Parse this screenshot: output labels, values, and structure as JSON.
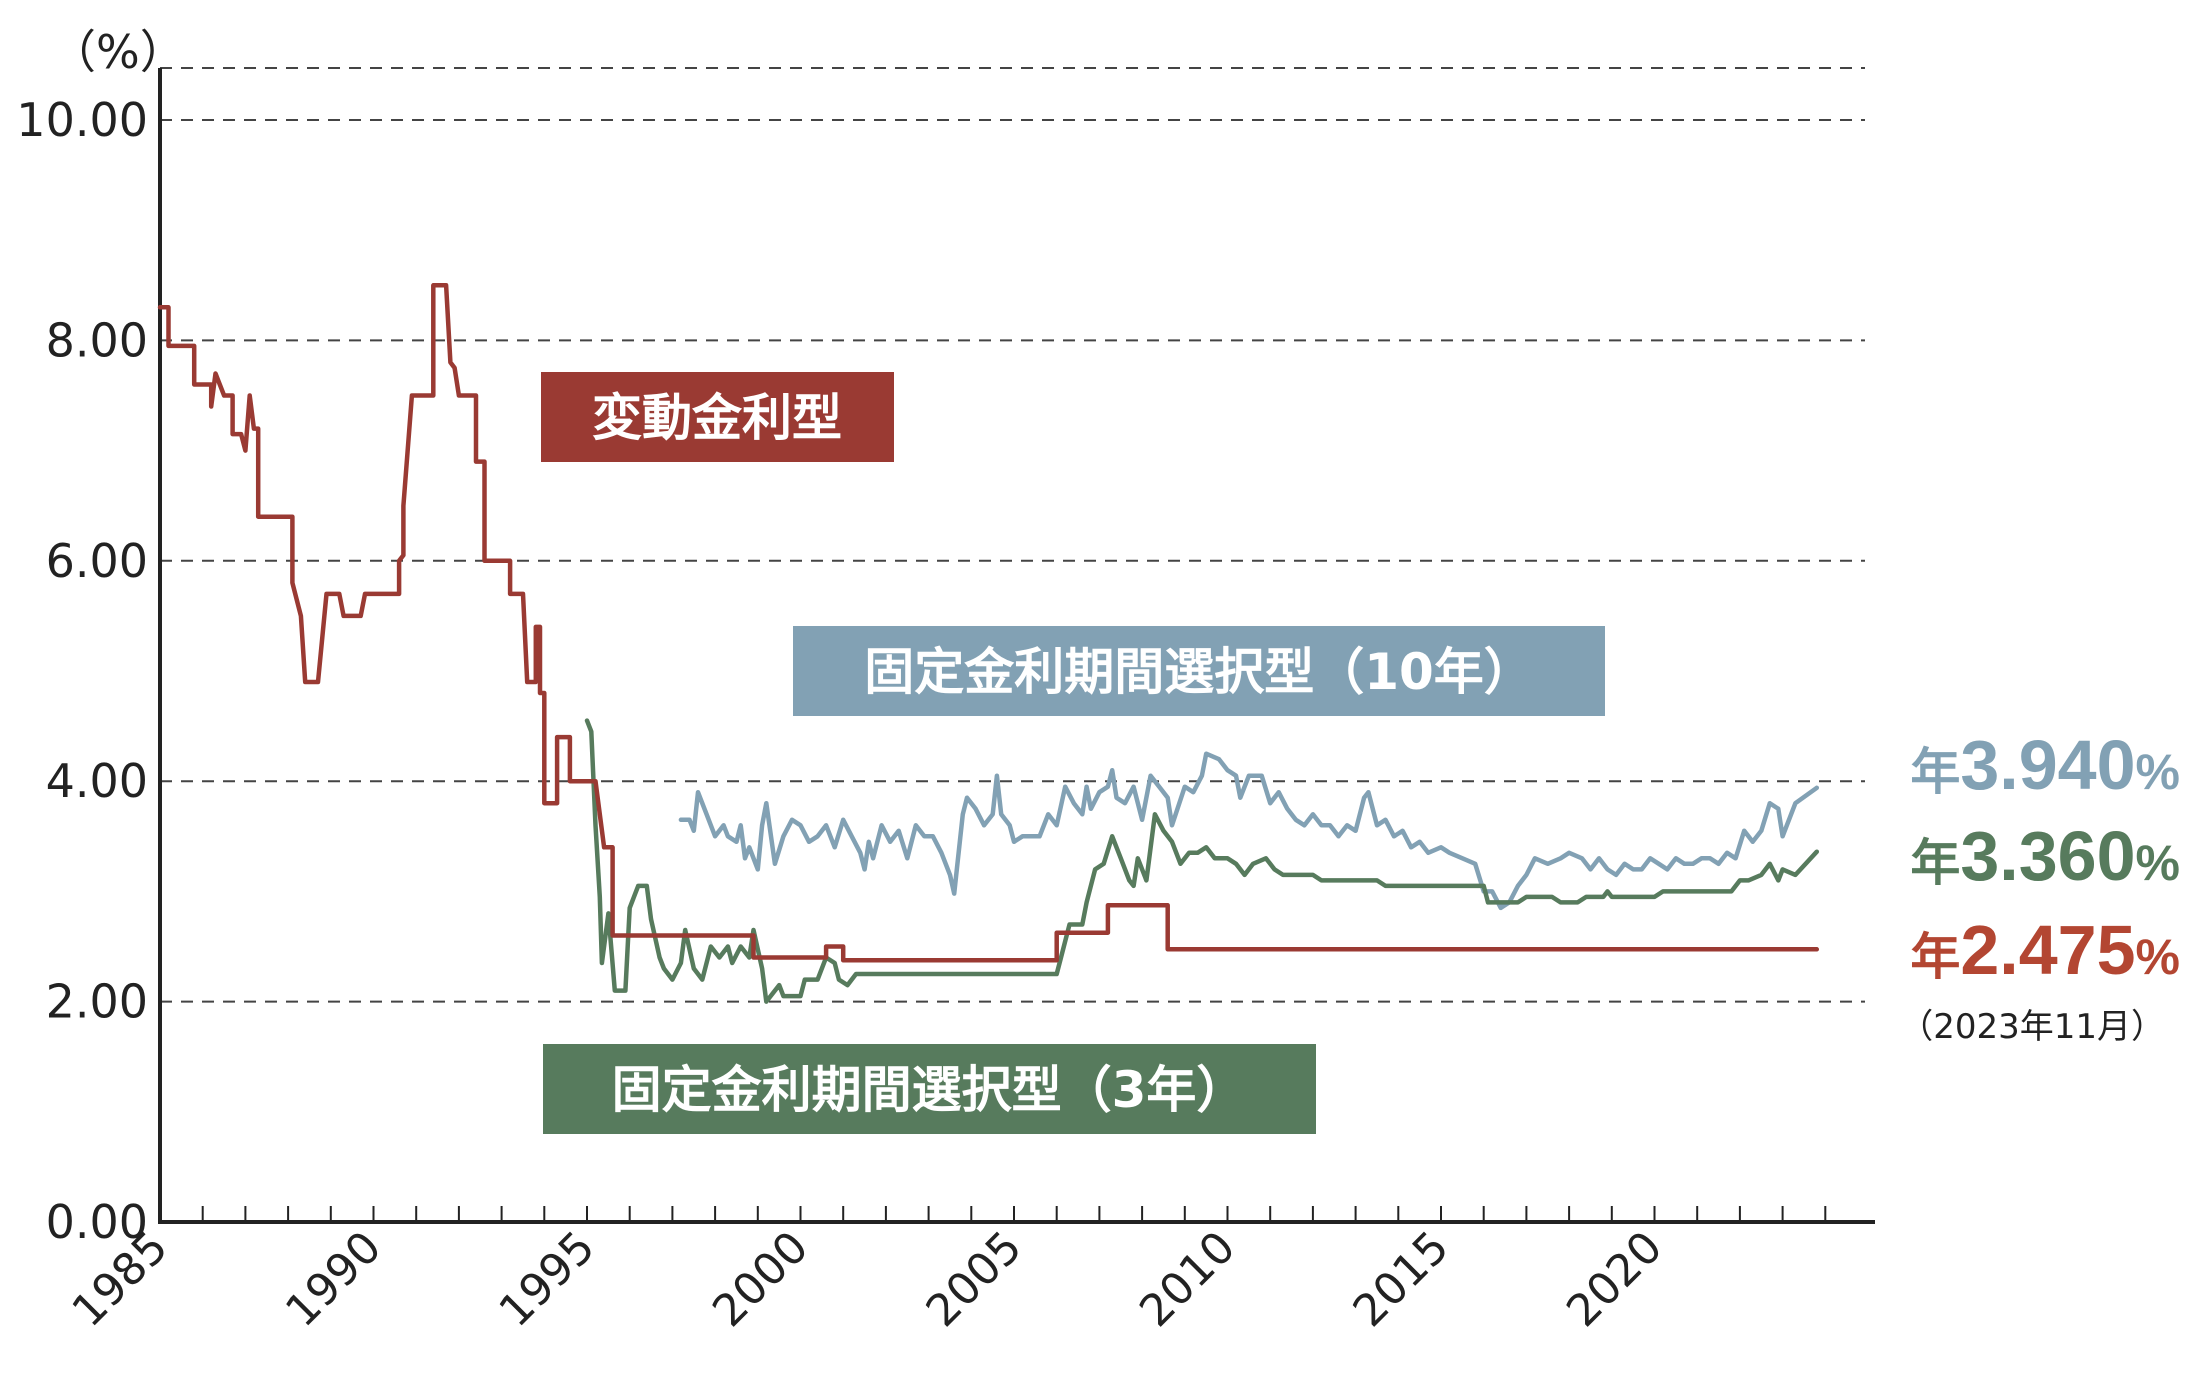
{
  "chart_data": {
    "type": "line",
    "y_unit_label": "（%）",
    "ylim": [
      0,
      10
    ],
    "y_ticks": [
      "0.00",
      "2.00",
      "4.00",
      "6.00",
      "8.00",
      "10.00"
    ],
    "y_tick_values": [
      0,
      2,
      4,
      6,
      8,
      10
    ],
    "xlim": [
      1985,
      2024
    ],
    "x_ticks": [
      "1985",
      "1990",
      "1995",
      "2000",
      "2005",
      "2010",
      "2015",
      "2020"
    ],
    "x_tick_values": [
      1985,
      1990,
      1995,
      2000,
      2005,
      2010,
      2015,
      2020
    ],
    "grid": "horizontal dashed",
    "series": [
      {
        "name": "変動金利型",
        "color": "#9a3a33",
        "latest_prefix": "年",
        "latest_value": "2.475",
        "latest_unit": "%",
        "points": [
          [
            1985.0,
            8.3
          ],
          [
            1985.2,
            8.3
          ],
          [
            1985.2,
            7.95
          ],
          [
            1985.8,
            7.95
          ],
          [
            1985.8,
            7.6
          ],
          [
            1986.2,
            7.6
          ],
          [
            1986.2,
            7.4
          ],
          [
            1986.3,
            7.7
          ],
          [
            1986.5,
            7.5
          ],
          [
            1986.7,
            7.5
          ],
          [
            1986.7,
            7.15
          ],
          [
            1986.9,
            7.15
          ],
          [
            1987.0,
            7.0
          ],
          [
            1987.1,
            7.5
          ],
          [
            1987.2,
            7.2
          ],
          [
            1987.3,
            7.2
          ],
          [
            1987.3,
            6.4
          ],
          [
            1988.1,
            6.4
          ],
          [
            1988.1,
            5.8
          ],
          [
            1988.3,
            5.5
          ],
          [
            1988.4,
            4.9
          ],
          [
            1988.7,
            4.9
          ],
          [
            1988.9,
            5.7
          ],
          [
            1989.2,
            5.7
          ],
          [
            1989.3,
            5.5
          ],
          [
            1989.7,
            5.5
          ],
          [
            1989.8,
            5.7
          ],
          [
            1990.6,
            5.7
          ],
          [
            1990.6,
            6.0
          ],
          [
            1990.7,
            6.05
          ],
          [
            1990.7,
            6.5
          ],
          [
            1990.9,
            7.5
          ],
          [
            1991.4,
            7.5
          ],
          [
            1991.4,
            8.5
          ],
          [
            1991.7,
            8.5
          ],
          [
            1991.8,
            7.8
          ],
          [
            1991.9,
            7.75
          ],
          [
            1992.0,
            7.5
          ],
          [
            1992.4,
            7.5
          ],
          [
            1992.4,
            6.9
          ],
          [
            1992.6,
            6.9
          ],
          [
            1992.6,
            6.0
          ],
          [
            1993.2,
            6.0
          ],
          [
            1993.2,
            5.7
          ],
          [
            1993.5,
            5.7
          ],
          [
            1993.6,
            4.9
          ],
          [
            1993.8,
            4.9
          ],
          [
            1993.8,
            5.4
          ],
          [
            1993.9,
            5.4
          ],
          [
            1993.9,
            4.8
          ],
          [
            1994.0,
            4.8
          ],
          [
            1994.0,
            3.8
          ],
          [
            1994.3,
            3.8
          ],
          [
            1994.3,
            4.4
          ],
          [
            1994.6,
            4.4
          ],
          [
            1994.6,
            4.0
          ],
          [
            1995.2,
            4.0
          ],
          [
            1995.4,
            3.4
          ],
          [
            1995.6,
            3.4
          ],
          [
            1995.6,
            2.6
          ],
          [
            1998.9,
            2.6
          ],
          [
            1998.9,
            2.4
          ],
          [
            2000.6,
            2.4
          ],
          [
            2000.6,
            2.5
          ],
          [
            2001.0,
            2.5
          ],
          [
            2001.0,
            2.375
          ],
          [
            2006.0,
            2.375
          ],
          [
            2006.0,
            2.625
          ],
          [
            2007.2,
            2.625
          ],
          [
            2007.2,
            2.875
          ],
          [
            2008.6,
            2.875
          ],
          [
            2008.6,
            2.475
          ],
          [
            2023.8,
            2.475
          ]
        ]
      },
      {
        "name": "固定金利期間選択型（10年）",
        "color": "#82a1b4",
        "latest_prefix": "年",
        "latest_value": "3.940",
        "latest_unit": "%",
        "points": [
          [
            1997.2,
            3.65
          ],
          [
            1997.4,
            3.65
          ],
          [
            1997.5,
            3.55
          ],
          [
            1997.6,
            3.9
          ],
          [
            1997.8,
            3.7
          ],
          [
            1998.0,
            3.5
          ],
          [
            1998.2,
            3.6
          ],
          [
            1998.3,
            3.5
          ],
          [
            1998.5,
            3.45
          ],
          [
            1998.6,
            3.6
          ],
          [
            1998.7,
            3.3
          ],
          [
            1998.8,
            3.4
          ],
          [
            1999.0,
            3.2
          ],
          [
            1999.1,
            3.6
          ],
          [
            1999.2,
            3.8
          ],
          [
            1999.4,
            3.25
          ],
          [
            1999.6,
            3.5
          ],
          [
            1999.8,
            3.65
          ],
          [
            2000.0,
            3.6
          ],
          [
            2000.2,
            3.45
          ],
          [
            2000.4,
            3.5
          ],
          [
            2000.6,
            3.6
          ],
          [
            2000.8,
            3.4
          ],
          [
            2001.0,
            3.65
          ],
          [
            2001.2,
            3.5
          ],
          [
            2001.4,
            3.35
          ],
          [
            2001.5,
            3.2
          ],
          [
            2001.6,
            3.45
          ],
          [
            2001.7,
            3.3
          ],
          [
            2001.9,
            3.6
          ],
          [
            2002.1,
            3.45
          ],
          [
            2002.3,
            3.55
          ],
          [
            2002.5,
            3.3
          ],
          [
            2002.7,
            3.6
          ],
          [
            2002.9,
            3.5
          ],
          [
            2003.1,
            3.5
          ],
          [
            2003.3,
            3.35
          ],
          [
            2003.5,
            3.15
          ],
          [
            2003.6,
            2.98
          ],
          [
            2003.8,
            3.7
          ],
          [
            2003.9,
            3.85
          ],
          [
            2004.1,
            3.75
          ],
          [
            2004.3,
            3.6
          ],
          [
            2004.5,
            3.7
          ],
          [
            2004.6,
            4.05
          ],
          [
            2004.7,
            3.7
          ],
          [
            2004.9,
            3.6
          ],
          [
            2005.0,
            3.45
          ],
          [
            2005.2,
            3.5
          ],
          [
            2005.6,
            3.5
          ],
          [
            2005.8,
            3.7
          ],
          [
            2006.0,
            3.6
          ],
          [
            2006.2,
            3.95
          ],
          [
            2006.4,
            3.8
          ],
          [
            2006.6,
            3.7
          ],
          [
            2006.7,
            3.95
          ],
          [
            2006.8,
            3.75
          ],
          [
            2007.0,
            3.9
          ],
          [
            2007.2,
            3.95
          ],
          [
            2007.3,
            4.1
          ],
          [
            2007.4,
            3.85
          ],
          [
            2007.6,
            3.8
          ],
          [
            2007.8,
            3.95
          ],
          [
            2008.0,
            3.65
          ],
          [
            2008.2,
            4.05
          ],
          [
            2008.4,
            3.95
          ],
          [
            2008.6,
            3.85
          ],
          [
            2008.7,
            3.6
          ],
          [
            2009.0,
            3.95
          ],
          [
            2009.2,
            3.9
          ],
          [
            2009.4,
            4.05
          ],
          [
            2009.5,
            4.25
          ],
          [
            2009.8,
            4.2
          ],
          [
            2010.0,
            4.1
          ],
          [
            2010.2,
            4.05
          ],
          [
            2010.3,
            3.85
          ],
          [
            2010.5,
            4.05
          ],
          [
            2010.8,
            4.05
          ],
          [
            2011.0,
            3.8
          ],
          [
            2011.2,
            3.9
          ],
          [
            2011.4,
            3.75
          ],
          [
            2011.6,
            3.65
          ],
          [
            2011.8,
            3.6
          ],
          [
            2012.0,
            3.7
          ],
          [
            2012.2,
            3.6
          ],
          [
            2012.4,
            3.6
          ],
          [
            2012.6,
            3.5
          ],
          [
            2012.8,
            3.6
          ],
          [
            2013.0,
            3.55
          ],
          [
            2013.2,
            3.85
          ],
          [
            2013.3,
            3.9
          ],
          [
            2013.5,
            3.6
          ],
          [
            2013.7,
            3.65
          ],
          [
            2013.9,
            3.5
          ],
          [
            2014.1,
            3.55
          ],
          [
            2014.3,
            3.4
          ],
          [
            2014.5,
            3.45
          ],
          [
            2014.7,
            3.35
          ],
          [
            2015.0,
            3.4
          ],
          [
            2015.2,
            3.35
          ],
          [
            2015.5,
            3.3
          ],
          [
            2015.8,
            3.25
          ],
          [
            2016.0,
            3.0
          ],
          [
            2016.2,
            3.0
          ],
          [
            2016.4,
            2.85
          ],
          [
            2016.6,
            2.9
          ],
          [
            2016.8,
            3.05
          ],
          [
            2017.0,
            3.15
          ],
          [
            2017.2,
            3.3
          ],
          [
            2017.5,
            3.25
          ],
          [
            2017.8,
            3.3
          ],
          [
            2018.0,
            3.35
          ],
          [
            2018.3,
            3.3
          ],
          [
            2018.5,
            3.2
          ],
          [
            2018.7,
            3.3
          ],
          [
            2018.9,
            3.2
          ],
          [
            2019.1,
            3.15
          ],
          [
            2019.3,
            3.25
          ],
          [
            2019.5,
            3.2
          ],
          [
            2019.7,
            3.2
          ],
          [
            2019.9,
            3.3
          ],
          [
            2020.1,
            3.25
          ],
          [
            2020.3,
            3.2
          ],
          [
            2020.5,
            3.3
          ],
          [
            2020.7,
            3.25
          ],
          [
            2020.9,
            3.25
          ],
          [
            2021.1,
            3.3
          ],
          [
            2021.3,
            3.3
          ],
          [
            2021.5,
            3.25
          ],
          [
            2021.7,
            3.35
          ],
          [
            2021.9,
            3.3
          ],
          [
            2022.1,
            3.55
          ],
          [
            2022.3,
            3.45
          ],
          [
            2022.5,
            3.55
          ],
          [
            2022.7,
            3.8
          ],
          [
            2022.9,
            3.75
          ],
          [
            2023.0,
            3.5
          ],
          [
            2023.3,
            3.8
          ],
          [
            2023.8,
            3.94
          ]
        ]
      },
      {
        "name": "固定金利期間選択型（3年）",
        "color": "#577b5d",
        "latest_prefix": "年",
        "latest_value": "3.360",
        "latest_unit": "%",
        "points": [
          [
            1995.0,
            4.55
          ],
          [
            1995.1,
            4.45
          ],
          [
            1995.2,
            3.6
          ],
          [
            1995.3,
            2.95
          ],
          [
            1995.35,
            2.35
          ],
          [
            1995.5,
            2.8
          ],
          [
            1995.65,
            2.1
          ],
          [
            1995.9,
            2.1
          ],
          [
            1996.0,
            2.85
          ],
          [
            1996.2,
            3.05
          ],
          [
            1996.4,
            3.05
          ],
          [
            1996.5,
            2.75
          ],
          [
            1996.7,
            2.4
          ],
          [
            1996.8,
            2.3
          ],
          [
            1997.0,
            2.2
          ],
          [
            1997.2,
            2.35
          ],
          [
            1997.3,
            2.65
          ],
          [
            1997.5,
            2.3
          ],
          [
            1997.7,
            2.2
          ],
          [
            1997.9,
            2.5
          ],
          [
            1998.1,
            2.4
          ],
          [
            1998.3,
            2.5
          ],
          [
            1998.4,
            2.35
          ],
          [
            1998.6,
            2.5
          ],
          [
            1998.8,
            2.4
          ],
          [
            1998.9,
            2.65
          ],
          [
            1999.1,
            2.3
          ],
          [
            1999.2,
            2.0
          ],
          [
            1999.5,
            2.15
          ],
          [
            1999.6,
            2.05
          ],
          [
            2000.0,
            2.05
          ],
          [
            2000.1,
            2.2
          ],
          [
            2000.4,
            2.2
          ],
          [
            2000.6,
            2.4
          ],
          [
            2000.8,
            2.35
          ],
          [
            2000.9,
            2.2
          ],
          [
            2001.1,
            2.15
          ],
          [
            2001.3,
            2.25
          ],
          [
            2006.0,
            2.25
          ],
          [
            2006.1,
            2.4
          ],
          [
            2006.3,
            2.7
          ],
          [
            2006.6,
            2.7
          ],
          [
            2006.7,
            2.9
          ],
          [
            2006.9,
            3.2
          ],
          [
            2007.1,
            3.25
          ],
          [
            2007.3,
            3.5
          ],
          [
            2007.5,
            3.3
          ],
          [
            2007.7,
            3.1
          ],
          [
            2007.8,
            3.05
          ],
          [
            2007.9,
            3.3
          ],
          [
            2008.1,
            3.1
          ],
          [
            2008.3,
            3.7
          ],
          [
            2008.5,
            3.55
          ],
          [
            2008.7,
            3.45
          ],
          [
            2008.9,
            3.25
          ],
          [
            2009.1,
            3.35
          ],
          [
            2009.3,
            3.35
          ],
          [
            2009.5,
            3.4
          ],
          [
            2009.7,
            3.3
          ],
          [
            2010.0,
            3.3
          ],
          [
            2010.2,
            3.25
          ],
          [
            2010.4,
            3.15
          ],
          [
            2010.6,
            3.25
          ],
          [
            2010.9,
            3.3
          ],
          [
            2011.1,
            3.2
          ],
          [
            2011.3,
            3.15
          ],
          [
            2012.0,
            3.15
          ],
          [
            2012.2,
            3.1
          ],
          [
            2013.5,
            3.1
          ],
          [
            2013.7,
            3.05
          ],
          [
            2016.0,
            3.05
          ],
          [
            2016.1,
            2.9
          ],
          [
            2016.8,
            2.9
          ],
          [
            2017.0,
            2.95
          ],
          [
            2017.6,
            2.95
          ],
          [
            2017.8,
            2.9
          ],
          [
            2018.2,
            2.9
          ],
          [
            2018.4,
            2.95
          ],
          [
            2018.8,
            2.95
          ],
          [
            2018.9,
            3.0
          ],
          [
            2019.0,
            2.95
          ],
          [
            2020.0,
            2.95
          ],
          [
            2020.2,
            3.0
          ],
          [
            2021.8,
            3.0
          ],
          [
            2022.0,
            3.1
          ],
          [
            2022.2,
            3.1
          ],
          [
            2022.5,
            3.15
          ],
          [
            2022.7,
            3.25
          ],
          [
            2022.9,
            3.1
          ],
          [
            2023.0,
            3.2
          ],
          [
            2023.3,
            3.15
          ],
          [
            2023.8,
            3.36
          ]
        ]
      }
    ],
    "date_note": "（2023年11月）"
  }
}
